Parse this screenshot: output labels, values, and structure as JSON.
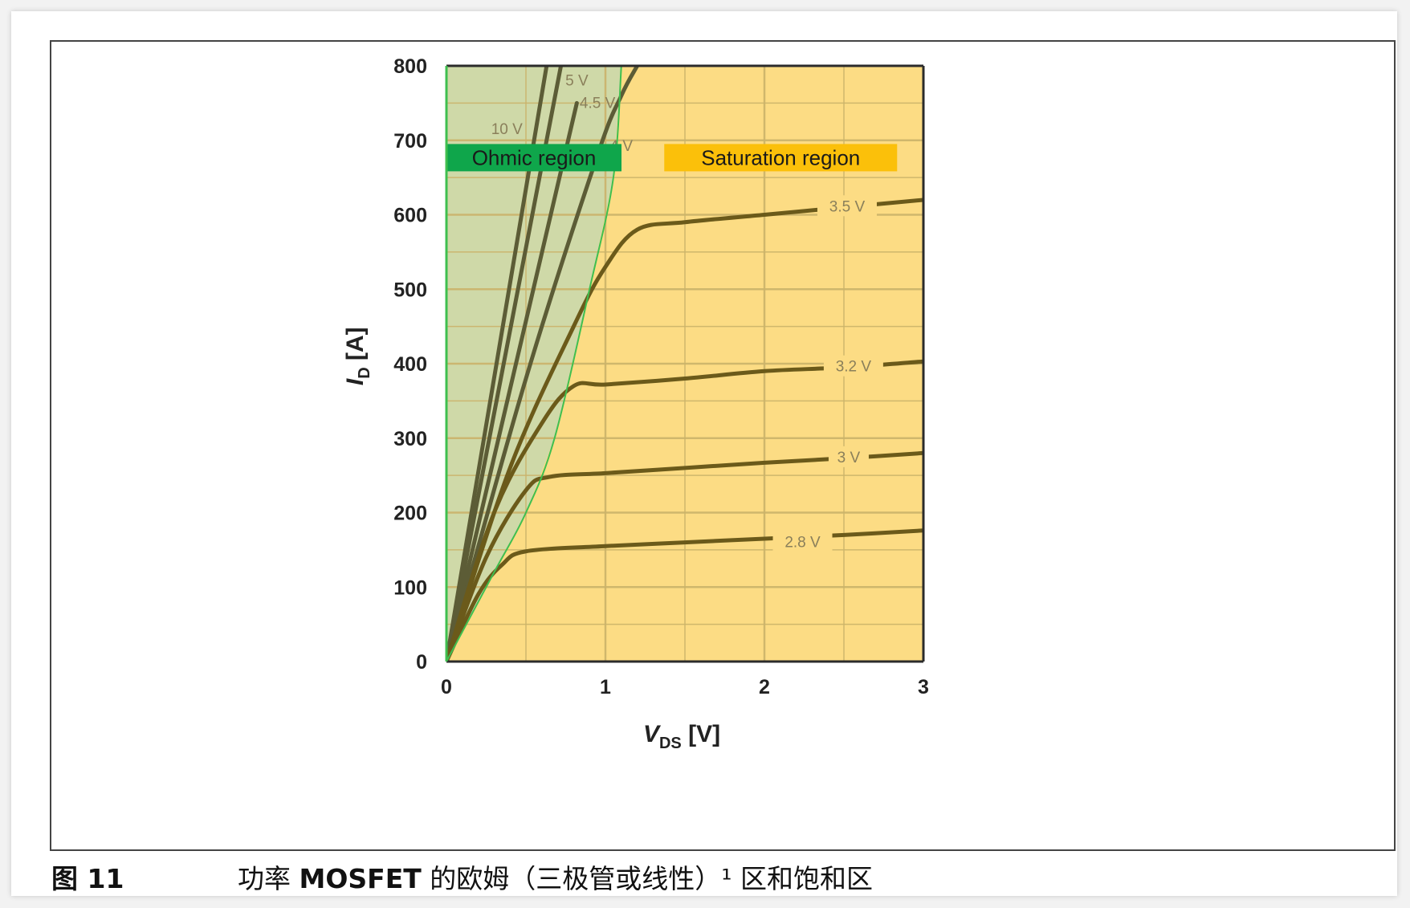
{
  "caption": {
    "number": "图 11",
    "text_before": "功率 ",
    "text_bold": "MOSFET",
    "text_after": " 的欧姆（三极管或线性）¹ 区和饱和区"
  },
  "colors": {
    "ohmic_fill": "#cfd9a8",
    "saturation_fill": "#fcdc84",
    "curve": "#5c5c36",
    "saturation_curve": "#6b5a1a",
    "boundary": "#3fbf4f",
    "ohmic_label_bg": "#0fa64b",
    "saturation_label_bg": "#fbc00a",
    "grid": "#cbb36a"
  },
  "chart_data": {
    "type": "line",
    "title": "",
    "xlabel": "V",
    "xlabel_sub": "DS",
    "xlabel_unit": " [V]",
    "ylabel": "I",
    "ylabel_sub": "D",
    "ylabel_unit": " [A]",
    "xlim": [
      0,
      3
    ],
    "ylim": [
      0,
      800
    ],
    "x_ticks": [
      0,
      1,
      2,
      3
    ],
    "y_ticks": [
      0,
      100,
      200,
      300,
      400,
      500,
      600,
      700,
      800
    ],
    "minor_grid_x": 0.5,
    "minor_grid_y": 50,
    "grid": true,
    "regions": [
      {
        "name": "Ohmic region",
        "boundary": [
          [
            0,
            0
          ],
          [
            0.3,
            120
          ],
          [
            0.5,
            200
          ],
          [
            0.68,
            300
          ],
          [
            0.9,
            500
          ],
          [
            1.05,
            650
          ],
          [
            1.1,
            800
          ]
        ]
      },
      {
        "name": "Saturation region"
      }
    ],
    "series": [
      {
        "name": "10 V",
        "x": [
          0,
          0.63
        ],
        "y": [
          0,
          800
        ]
      },
      {
        "name": "5 V",
        "x": [
          0,
          0.72
        ],
        "y": [
          0,
          800
        ]
      },
      {
        "name": "4.5 V",
        "x": [
          0,
          0.82
        ],
        "y": [
          0,
          750
        ]
      },
      {
        "name": "4 V",
        "x": [
          0,
          0.5,
          0.95,
          1.1,
          1.2
        ],
        "y": [
          0,
          380,
          680,
          760,
          800
        ]
      },
      {
        "name": "3.5 V",
        "x": [
          0,
          0.4,
          0.8,
          1.0,
          1.2,
          1.5,
          2.0,
          2.5,
          3.0
        ],
        "y": [
          0,
          260,
          450,
          530,
          580,
          590,
          600,
          610,
          620
        ]
      },
      {
        "name": "3.2 V",
        "x": [
          0,
          0.3,
          0.6,
          0.8,
          1.0,
          1.5,
          2.0,
          2.5,
          3.0
        ],
        "y": [
          0,
          200,
          320,
          370,
          372,
          380,
          390,
          395,
          403
        ]
      },
      {
        "name": "3 V",
        "x": [
          0,
          0.25,
          0.5,
          0.65,
          1.0,
          1.5,
          2.0,
          2.5,
          3.0
        ],
        "y": [
          0,
          140,
          230,
          248,
          253,
          260,
          267,
          273,
          280
        ]
      },
      {
        "name": "2.8 V",
        "x": [
          0,
          0.2,
          0.35,
          0.5,
          1.0,
          1.5,
          2.0,
          2.5,
          3.0
        ],
        "y": [
          0,
          90,
          130,
          148,
          155,
          160,
          165,
          170,
          176
        ]
      }
    ]
  }
}
